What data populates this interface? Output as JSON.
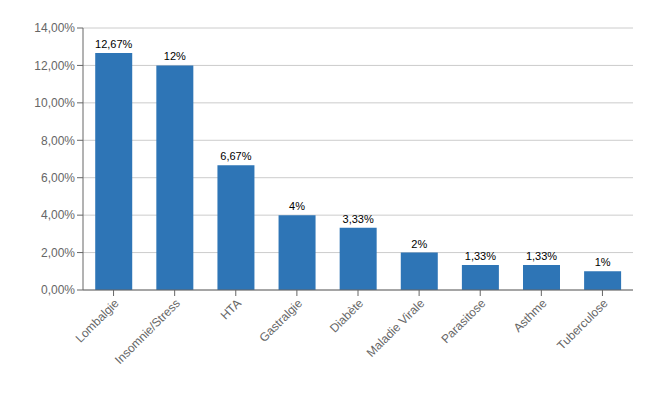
{
  "chart_data": {
    "type": "bar",
    "categories": [
      "Lombalgie",
      "Insomnie/Stress",
      "HTA",
      "Gastralgie",
      "Diabète",
      "Maladie Virale",
      "Parasitose",
      "Asthme",
      "Tuberculose"
    ],
    "values": [
      12.67,
      12.0,
      6.67,
      4.0,
      3.33,
      2.0,
      1.33,
      1.33,
      1.0
    ],
    "value_labels": [
      "12,67%",
      "12%",
      "6,67%",
      "4%",
      "3,33%",
      "2%",
      "1,33%",
      "1,33%",
      "1%"
    ],
    "data_labels": true,
    "color": "#2E75B6",
    "ylim": [
      0,
      14
    ],
    "yticks": [
      {
        "value": 0,
        "label": "0,00%"
      },
      {
        "value": 2,
        "label": "2,00%"
      },
      {
        "value": 4,
        "label": "4,00%"
      },
      {
        "value": 6,
        "label": "6,00%"
      },
      {
        "value": 8,
        "label": "8,00%"
      },
      {
        "value": 10,
        "label": "10,00%"
      },
      {
        "value": 12,
        "label": "12,00%"
      },
      {
        "value": 14,
        "label": "14,00%"
      }
    ],
    "grid": true
  }
}
